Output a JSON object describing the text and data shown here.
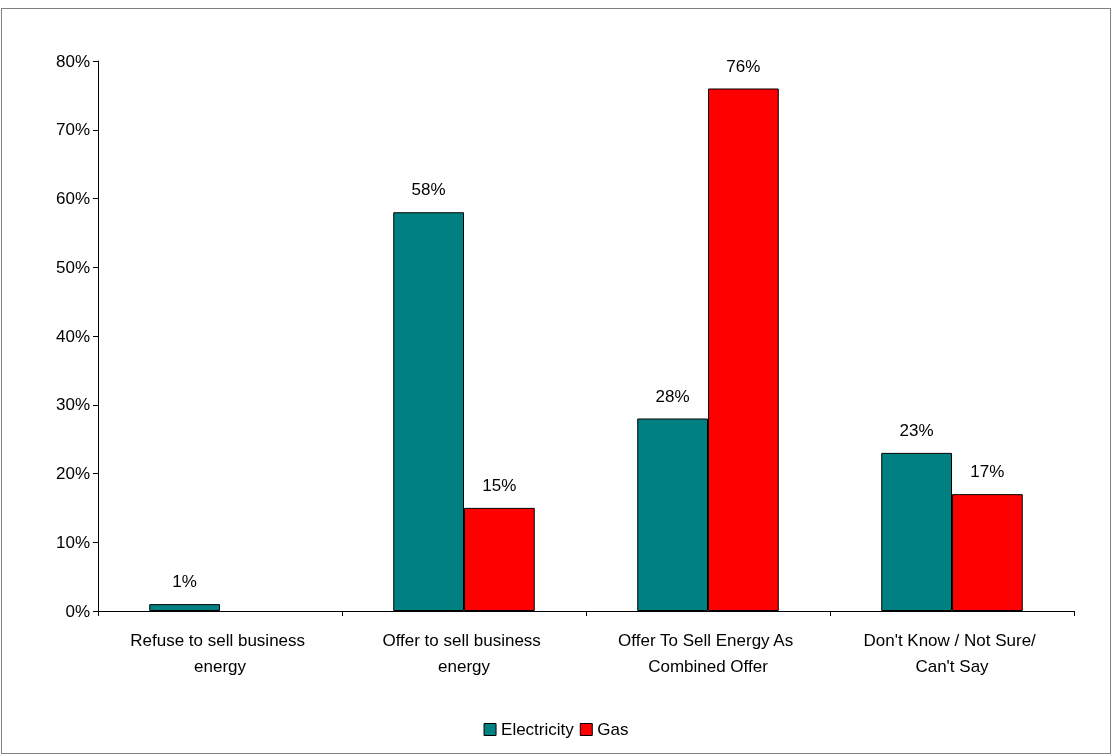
{
  "chart_data": {
    "type": "bar",
    "categories": [
      "Refuse to sell business energy",
      "Offer to sell business energy",
      "Offer To Sell Energy As Combined Offer",
      "Don't Know / Not Sure/ Can't Say"
    ],
    "series": [
      {
        "name": "Electricity",
        "color": "#008080",
        "values": [
          1,
          58,
          28,
          23
        ],
        "value_labels": [
          "1%",
          "58%",
          "28%",
          "23%"
        ]
      },
      {
        "name": "Gas",
        "color": "#ff0000",
        "values": [
          null,
          15,
          76,
          17
        ],
        "value_labels": [
          null,
          "15%",
          "76%",
          "17%"
        ]
      }
    ],
    "ylim": [
      0,
      80
    ],
    "yticks": [
      {
        "value": 0,
        "label": "0%"
      },
      {
        "value": 10,
        "label": "10%"
      },
      {
        "value": 20,
        "label": "20%"
      },
      {
        "value": 30,
        "label": "30%"
      },
      {
        "value": 40,
        "label": "40%"
      },
      {
        "value": 50,
        "label": "50%"
      },
      {
        "value": 60,
        "label": "60%"
      },
      {
        "value": 70,
        "label": "70%"
      },
      {
        "value": 80,
        "label": "80%"
      }
    ],
    "grid": false,
    "legend": "bottom"
  }
}
